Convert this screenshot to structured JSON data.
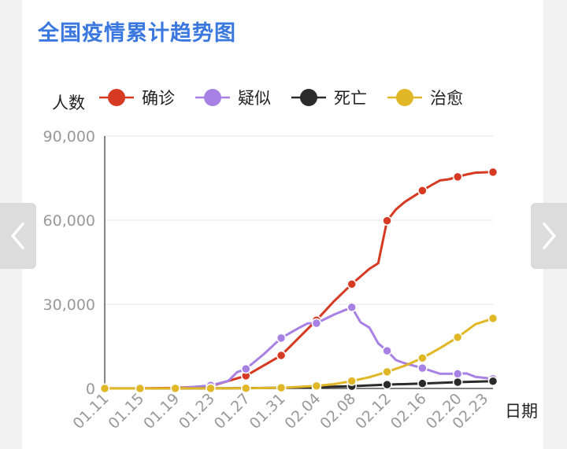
{
  "title": "全国疫情累计趋势图",
  "nav": {
    "prev_icon": "chevron-left-icon",
    "next_icon": "chevron-right-icon"
  },
  "chart_data": {
    "type": "line",
    "ylabel": "人数",
    "xlabel": "日期",
    "ylim": [
      0,
      90000
    ],
    "yticks": [
      0,
      30000,
      60000,
      90000
    ],
    "ytick_labels": [
      "0",
      "30,000",
      "60,000",
      "90,000"
    ],
    "x_range": [
      "01.11",
      "02.24"
    ],
    "xtick_labels": [
      "01.11",
      "01.15",
      "01.19",
      "01.23",
      "01.27",
      "01.31",
      "02.04",
      "02.08",
      "02.12",
      "02.16",
      "02.20",
      "02.23"
    ],
    "grid": true,
    "legend_position": "top",
    "series": [
      {
        "name": "确诊",
        "color": "#d63a22",
        "points": [
          [
            "01.11",
            41
          ],
          [
            "01.15",
            41
          ],
          [
            "01.19",
            200
          ],
          [
            "01.23",
            830
          ],
          [
            "01.27",
            4515
          ],
          [
            "01.31",
            11791
          ],
          [
            "02.04",
            24324
          ],
          [
            "02.06",
            31161
          ],
          [
            "02.08",
            37198
          ],
          [
            "02.10",
            42638
          ],
          [
            "02.11",
            44653
          ],
          [
            "02.12",
            59804
          ],
          [
            "02.13",
            63851
          ],
          [
            "02.14",
            66492
          ],
          [
            "02.15",
            68500
          ],
          [
            "02.16",
            70548
          ],
          [
            "02.17",
            72436
          ],
          [
            "02.18",
            74185
          ],
          [
            "02.19",
            74576
          ],
          [
            "02.20",
            75465
          ],
          [
            "02.21",
            76288
          ],
          [
            "02.22",
            76936
          ],
          [
            "02.24",
            77150
          ]
        ],
        "markers": [
          "01.11",
          "01.15",
          "01.19",
          "01.23",
          "01.27",
          "01.31",
          "02.04",
          "02.08",
          "02.12",
          "02.16",
          "02.20",
          "02.24"
        ]
      },
      {
        "name": "疑似",
        "color": "#a781e3",
        "points": [
          [
            "01.11",
            0
          ],
          [
            "01.15",
            0
          ],
          [
            "01.19",
            0
          ],
          [
            "01.23",
            1072
          ],
          [
            "01.25",
            2684
          ],
          [
            "01.26",
            5794
          ],
          [
            "01.27",
            6973
          ],
          [
            "01.29",
            12167
          ],
          [
            "01.31",
            17988
          ],
          [
            "02.02",
            21558
          ],
          [
            "02.03",
            23214
          ],
          [
            "02.04",
            23260
          ],
          [
            "02.06",
            26359
          ],
          [
            "02.08",
            28942
          ],
          [
            "02.09",
            23589
          ],
          [
            "02.10",
            21675
          ],
          [
            "02.11",
            16067
          ],
          [
            "02.12",
            13435
          ],
          [
            "02.13",
            10109
          ],
          [
            "02.14",
            8969
          ],
          [
            "02.16",
            7264
          ],
          [
            "02.18",
            5248
          ],
          [
            "02.20",
            5206
          ],
          [
            "02.21",
            5365
          ],
          [
            "02.22",
            4148
          ],
          [
            "02.24",
            3434
          ]
        ],
        "markers": [
          "01.23",
          "01.27",
          "01.31",
          "02.04",
          "02.08",
          "02.12",
          "02.16",
          "02.20",
          "02.24"
        ]
      },
      {
        "name": "死亡",
        "color": "#2b2b2b",
        "points": [
          [
            "01.11",
            1
          ],
          [
            "01.15",
            2
          ],
          [
            "01.19",
            3
          ],
          [
            "01.23",
            25
          ],
          [
            "01.27",
            106
          ],
          [
            "01.31",
            259
          ],
          [
            "02.04",
            490
          ],
          [
            "02.08",
            811
          ],
          [
            "02.12",
            1367
          ],
          [
            "02.16",
            1770
          ],
          [
            "02.20",
            2236
          ],
          [
            "02.24",
            2592
          ]
        ],
        "markers": [
          "01.11",
          "01.15",
          "01.19",
          "01.23",
          "01.27",
          "01.31",
          "02.04",
          "02.08",
          "02.12",
          "02.16",
          "02.20",
          "02.24"
        ]
      },
      {
        "name": "治愈",
        "color": "#e0b726",
        "points": [
          [
            "01.11",
            0
          ],
          [
            "01.15",
            12
          ],
          [
            "01.19",
            25
          ],
          [
            "01.23",
            34
          ],
          [
            "01.27",
            60
          ],
          [
            "01.31",
            243
          ],
          [
            "02.04",
            892
          ],
          [
            "02.06",
            1540
          ],
          [
            "02.08",
            2649
          ],
          [
            "02.10",
            4000
          ],
          [
            "02.12",
            5911
          ],
          [
            "02.14",
            8096
          ],
          [
            "02.16",
            10844
          ],
          [
            "02.18",
            14376
          ],
          [
            "02.20",
            18264
          ],
          [
            "02.22",
            22888
          ],
          [
            "02.24",
            24990
          ]
        ],
        "markers": [
          "01.11",
          "01.15",
          "01.19",
          "01.23",
          "01.27",
          "01.31",
          "02.04",
          "02.08",
          "02.12",
          "02.16",
          "02.20",
          "02.24"
        ]
      }
    ]
  }
}
